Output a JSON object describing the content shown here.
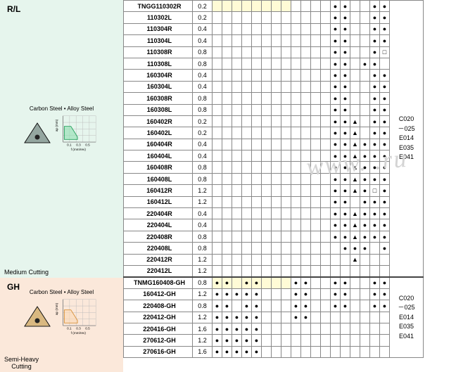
{
  "sections": [
    {
      "id": "rl",
      "title": "R/L",
      "sub": "Carbon Steel • Alloy Steel",
      "bottom": "Medium Cutting",
      "insert_fill": "#94a6a0"
    },
    {
      "id": "gh",
      "title": "GH",
      "sub": "Carbon Steel • Alloy Steel",
      "bottom": "Semi-Heavy\nCutting",
      "insert_fill": "#d9b880"
    }
  ],
  "chart": {
    "axis_color": "#888",
    "grid_color": "#bbb",
    "xlabel": "f (mm/rev)",
    "ylabel": "ap (mm)",
    "xticks": [
      "0.1",
      "0.3",
      "0.5"
    ],
    "rl_fill": "#8fe0b0",
    "rl_stroke": "#25a05c",
    "gh_fill": "#fcd9b6",
    "gh_stroke": "#d8913b"
  },
  "marks": {
    "dot": "●",
    "tri": "▲",
    "sq": "□"
  },
  "refs_rl": "C020\n－025\nE014\nE035\nE041",
  "refs_gh": "C020\n－025\nE014\nE035\nE041",
  "cols": 18,
  "rows_rl": [
    {
      "d": "TNGG110302R",
      "v": "0.2",
      "y": [
        0,
        1,
        2,
        3,
        4,
        5,
        6,
        7
      ],
      "m": {
        "12": "dot",
        "13": "dot",
        "16": "dot",
        "17": "dot"
      }
    },
    {
      "d": "110302L",
      "v": "0.2",
      "y": [],
      "m": {
        "12": "dot",
        "13": "dot",
        "16": "dot",
        "17": "dot"
      }
    },
    {
      "d": "110304R",
      "v": "0.4",
      "y": [],
      "m": {
        "12": "dot",
        "13": "dot",
        "16": "dot",
        "17": "dot"
      }
    },
    {
      "d": "110304L",
      "v": "0.4",
      "y": [],
      "m": {
        "12": "dot",
        "13": "dot",
        "16": "dot",
        "17": "dot"
      }
    },
    {
      "d": "110308R",
      "v": "0.8",
      "y": [],
      "m": {
        "12": "dot",
        "13": "dot",
        "16": "dot",
        "17": "sq"
      }
    },
    {
      "d": "110308L",
      "v": "0.8",
      "y": [],
      "m": {
        "12": "dot",
        "13": "dot",
        "15": "dot",
        "16": "dot"
      }
    },
    {
      "d": "160304R",
      "v": "0.4",
      "y": [],
      "m": {
        "12": "dot",
        "13": "dot",
        "16": "dot",
        "17": "dot"
      }
    },
    {
      "d": "160304L",
      "v": "0.4",
      "y": [],
      "m": {
        "12": "dot",
        "13": "dot",
        "16": "dot",
        "17": "dot"
      }
    },
    {
      "d": "160308R",
      "v": "0.8",
      "y": [],
      "m": {
        "12": "dot",
        "13": "dot",
        "16": "dot",
        "17": "dot"
      }
    },
    {
      "d": "160308L",
      "v": "0.8",
      "y": [],
      "m": {
        "12": "dot",
        "13": "dot",
        "16": "dot",
        "17": "dot"
      }
    },
    {
      "d": "160402R",
      "v": "0.2",
      "y": [],
      "m": {
        "12": "dot",
        "13": "dot",
        "14": "tri",
        "16": "dot",
        "17": "dot"
      }
    },
    {
      "d": "160402L",
      "v": "0.2",
      "y": [],
      "m": {
        "12": "dot",
        "13": "dot",
        "14": "tri",
        "16": "dot",
        "17": "dot"
      }
    },
    {
      "d": "160404R",
      "v": "0.4",
      "y": [],
      "m": {
        "12": "dot",
        "13": "dot",
        "14": "tri",
        "15": "dot",
        "16": "dot",
        "17": "dot"
      }
    },
    {
      "d": "160404L",
      "v": "0.4",
      "y": [],
      "m": {
        "12": "dot",
        "13": "dot",
        "14": "tri",
        "15": "dot",
        "16": "dot",
        "17": "dot"
      }
    },
    {
      "d": "160408R",
      "v": "0.8",
      "y": [],
      "m": {
        "12": "dot",
        "13": "dot",
        "14": "tri",
        "15": "dot",
        "16": "dot",
        "17": "dot"
      }
    },
    {
      "d": "160408L",
      "v": "0.8",
      "y": [],
      "m": {
        "12": "dot",
        "13": "dot",
        "14": "tri",
        "15": "dot",
        "16": "dot",
        "17": "dot"
      }
    },
    {
      "d": "160412R",
      "v": "1.2",
      "y": [],
      "m": {
        "12": "dot",
        "13": "dot",
        "14": "tri",
        "15": "dot",
        "16": "sq",
        "17": "dot"
      }
    },
    {
      "d": "160412L",
      "v": "1.2",
      "y": [],
      "m": {
        "12": "dot",
        "13": "dot",
        "15": "dot",
        "16": "dot",
        "17": "dot"
      }
    },
    {
      "d": "220404R",
      "v": "0.4",
      "y": [],
      "m": {
        "12": "dot",
        "13": "dot",
        "14": "tri",
        "15": "dot",
        "16": "dot",
        "17": "dot"
      }
    },
    {
      "d": "220404L",
      "v": "0.4",
      "y": [],
      "m": {
        "12": "dot",
        "13": "dot",
        "14": "tri",
        "15": "dot",
        "16": "dot",
        "17": "dot"
      }
    },
    {
      "d": "220408R",
      "v": "0.8",
      "y": [],
      "m": {
        "12": "dot",
        "13": "dot",
        "14": "tri",
        "15": "dot",
        "16": "dot",
        "17": "dot"
      }
    },
    {
      "d": "220408L",
      "v": "0.8",
      "y": [],
      "m": {
        "13": "dot",
        "14": "dot",
        "15": "dot",
        "17": "dot"
      }
    },
    {
      "d": "220412R",
      "v": "1.2",
      "y": [],
      "m": {
        "14": "tri"
      }
    },
    {
      "d": "220412L",
      "v": "1.2",
      "y": [],
      "m": {}
    }
  ],
  "rows_gh": [
    {
      "d": "TNMG160408-GH",
      "v": "0.8",
      "y": [
        0,
        1,
        2,
        3,
        4,
        5,
        6,
        7
      ],
      "m": {
        "0": "dot",
        "1": "dot",
        "3": "dot",
        "4": "dot",
        "8": "dot",
        "9": "dot",
        "12": "dot",
        "13": "dot",
        "16": "dot",
        "17": "dot"
      }
    },
    {
      "d": "160412-GH",
      "v": "1.2",
      "y": [],
      "m": {
        "0": "dot",
        "1": "dot",
        "2": "dot",
        "3": "dot",
        "4": "dot",
        "8": "dot",
        "9": "dot",
        "12": "dot",
        "13": "dot",
        "16": "dot",
        "17": "dot"
      }
    },
    {
      "d": "220408-GH",
      "v": "0.8",
      "y": [],
      "m": {
        "0": "dot",
        "1": "dot",
        "3": "dot",
        "4": "dot",
        "8": "dot",
        "9": "dot",
        "12": "dot",
        "13": "dot",
        "16": "dot",
        "17": "dot"
      }
    },
    {
      "d": "220412-GH",
      "v": "1.2",
      "y": [],
      "m": {
        "0": "dot",
        "1": "dot",
        "2": "dot",
        "3": "dot",
        "4": "dot",
        "8": "dot",
        "9": "dot"
      }
    },
    {
      "d": "220416-GH",
      "v": "1.6",
      "y": [],
      "m": {
        "0": "dot",
        "1": "dot",
        "2": "dot",
        "3": "dot",
        "4": "dot"
      }
    },
    {
      "d": "270612-GH",
      "v": "1.2",
      "y": [],
      "m": {
        "0": "dot",
        "1": "dot",
        "2": "dot",
        "3": "dot",
        "4": "dot"
      }
    },
    {
      "d": "270616-GH",
      "v": "1.6",
      "y": [],
      "m": {
        "0": "dot",
        "1": "dot",
        "2": "dot",
        "3": "dot",
        "4": "dot"
      }
    }
  ],
  "watermark": "www.         .ru"
}
